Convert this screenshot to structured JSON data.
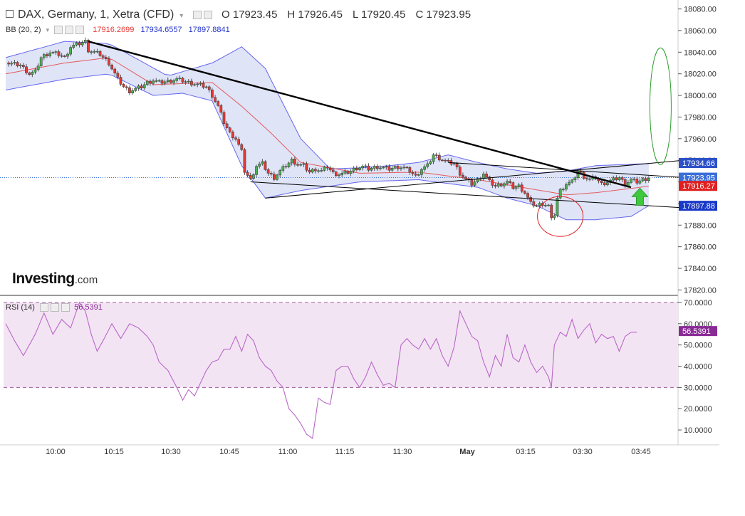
{
  "header": {
    "symbol_title": "DAX, Germany, 1, Xetra (CFD)",
    "open": "O 17923.45",
    "high": "H 17926.45",
    "low": "L 17920.45",
    "close": "C 17923.95",
    "bb_label": "BB (20, 2)",
    "bb_mid": "17916.2699",
    "bb_upper": "17934.6557",
    "bb_lower": "17897.8841",
    "rsi_label": "RSI (14)",
    "rsi_value": "56.5391",
    "logo_main": "Investing",
    "logo_suffix": ".com"
  },
  "colors": {
    "bull": "#4caf50",
    "bear": "#e53935",
    "bb_band": "#6666ee",
    "bb_fill": "#dfe4f7",
    "bb_mid": "#e53935",
    "rsi_line": "#b868c8",
    "rsi_fill": "#f3e4f3",
    "price_badge": "#3b6fd8",
    "upper_badge": "#2b50c8",
    "mid_badge": "#e02020",
    "lower_badge": "#1838c8",
    "rsi_badge": "#8a2a96"
  },
  "chart_data": [
    {
      "type": "candlestick",
      "title": "DAX, Germany, 1, Xetra (CFD)",
      "ylim": [
        17815,
        18085
      ],
      "y_ticks": [
        "18080.00",
        "18060.00",
        "18040.00",
        "18020.00",
        "18000.00",
        "17980.00",
        "17960.00",
        "17940.00",
        "17920.00",
        "17900.00",
        "17880.00",
        "17860.00",
        "17840.00",
        "17820.00"
      ],
      "x_ticks": [
        "10:00",
        "10:15",
        "10:30",
        "10:45",
        "11:00",
        "11:15",
        "11:30",
        "May",
        "03:15",
        "03:30",
        "03:45"
      ],
      "last_price_label": "17923.95",
      "bb_upper_label": "17934.66",
      "bb_mid_label": "17916.27",
      "bb_lower_label": "17897.88",
      "close_path": [
        [
          0,
          18030
        ],
        [
          5,
          18028
        ],
        [
          8,
          18020
        ],
        [
          10,
          18022
        ],
        [
          12,
          18035
        ],
        [
          15,
          18040
        ],
        [
          18,
          18038
        ],
        [
          20,
          18035
        ],
        [
          22,
          18045
        ],
        [
          25,
          18048
        ],
        [
          27,
          18050
        ],
        [
          28,
          18042
        ],
        [
          30,
          18040
        ],
        [
          32,
          18038
        ],
        [
          35,
          18030
        ],
        [
          38,
          18015
        ],
        [
          40,
          18008
        ],
        [
          42,
          18004
        ],
        [
          44,
          18006
        ],
        [
          46,
          18008
        ],
        [
          48,
          18012
        ],
        [
          50,
          18014
        ],
        [
          52,
          18012
        ],
        [
          55,
          18013
        ],
        [
          58,
          18015
        ],
        [
          62,
          18012
        ],
        [
          65,
          18010
        ],
        [
          68,
          18008
        ],
        [
          70,
          18000
        ],
        [
          72,
          17990
        ],
        [
          74,
          17975
        ],
        [
          76,
          17965
        ],
        [
          78,
          17960
        ],
        [
          80,
          17948
        ],
        [
          81,
          17930
        ],
        [
          83,
          17922
        ],
        [
          85,
          17935
        ],
        [
          87,
          17937
        ],
        [
          89,
          17928
        ],
        [
          91,
          17924
        ],
        [
          93,
          17930
        ],
        [
          95,
          17935
        ],
        [
          97,
          17940
        ],
        [
          99,
          17936
        ],
        [
          101,
          17935
        ],
        [
          103,
          17929
        ],
        [
          105,
          17932
        ],
        [
          107,
          17930
        ],
        [
          109,
          17934
        ],
        [
          111,
          17928
        ],
        [
          113,
          17927
        ],
        [
          115,
          17928
        ],
        [
          117,
          17930
        ],
        [
          119,
          17933
        ],
        [
          121,
          17934
        ],
        [
          123,
          17932
        ],
        [
          126,
          17934
        ],
        [
          128,
          17933
        ],
        [
          130,
          17932
        ],
        [
          133,
          17934
        ],
        [
          135,
          17933
        ],
        [
          137,
          17930
        ],
        [
          139,
          17925
        ],
        [
          141,
          17932
        ],
        [
          143,
          17935
        ],
        [
          145,
          17945
        ],
        [
          147,
          17942
        ],
        [
          150,
          17938
        ],
        [
          152,
          17937
        ],
        [
          154,
          17928
        ],
        [
          156,
          17922
        ],
        [
          158,
          17918
        ],
        [
          160,
          17922
        ],
        [
          162,
          17928
        ],
        [
          164,
          17920
        ],
        [
          166,
          17916
        ],
        [
          168,
          17918
        ],
        [
          170,
          17920
        ],
        [
          172,
          17915
        ],
        [
          174,
          17916
        ],
        [
          176,
          17910
        ],
        [
          178,
          17900
        ],
        [
          180,
          17898
        ],
        [
          182,
          17900
        ],
        [
          184,
          17898
        ],
        [
          185,
          17885
        ],
        [
          186,
          17890
        ],
        [
          187,
          17905
        ],
        [
          188,
          17912
        ],
        [
          190,
          17918
        ],
        [
          192,
          17920
        ],
        [
          194,
          17930
        ],
        [
          196,
          17925
        ],
        [
          198,
          17922
        ],
        [
          200,
          17924
        ],
        [
          202,
          17918
        ],
        [
          204,
          17920
        ],
        [
          206,
          17922
        ],
        [
          208,
          17924
        ],
        [
          210,
          17918
        ],
        [
          212,
          17922
        ],
        [
          214,
          17920
        ],
        [
          216,
          17922
        ],
        [
          218,
          17924
        ]
      ],
      "bb_upper": [
        [
          0,
          18035
        ],
        [
          20,
          18050
        ],
        [
          35,
          18048
        ],
        [
          55,
          18018
        ],
        [
          70,
          18030
        ],
        [
          80,
          18045
        ],
        [
          88,
          18025
        ],
        [
          100,
          17960
        ],
        [
          110,
          17932
        ],
        [
          120,
          17933
        ],
        [
          130,
          17935
        ],
        [
          140,
          17938
        ],
        [
          150,
          17945
        ],
        [
          160,
          17938
        ],
        [
          170,
          17932
        ],
        [
          180,
          17928
        ],
        [
          190,
          17930
        ],
        [
          200,
          17935
        ],
        [
          218,
          17937
        ]
      ],
      "bb_lower": [
        [
          0,
          18005
        ],
        [
          20,
          18015
        ],
        [
          35,
          18020
        ],
        [
          50,
          18000
        ],
        [
          60,
          18002
        ],
        [
          70,
          17995
        ],
        [
          80,
          17935
        ],
        [
          88,
          17905
        ],
        [
          100,
          17912
        ],
        [
          120,
          17920
        ],
        [
          140,
          17922
        ],
        [
          160,
          17915
        ],
        [
          170,
          17905
        ],
        [
          180,
          17898
        ],
        [
          190,
          17885
        ],
        [
          200,
          17885
        ],
        [
          212,
          17888
        ],
        [
          218,
          17898
        ]
      ],
      "bb_mid": [
        [
          0,
          18020
        ],
        [
          20,
          18030
        ],
        [
          35,
          18035
        ],
        [
          50,
          18010
        ],
        [
          70,
          18012
        ],
        [
          80,
          17990
        ],
        [
          90,
          17965
        ],
        [
          100,
          17938
        ],
        [
          120,
          17928
        ],
        [
          140,
          17929
        ],
        [
          160,
          17922
        ],
        [
          175,
          17915
        ],
        [
          190,
          17908
        ],
        [
          200,
          17910
        ],
        [
          218,
          17916
        ]
      ],
      "annotations": {
        "trendline_main": [
          [
            28,
            18050
          ],
          [
            212,
            17915
          ]
        ],
        "channel_line_lower": [
          [
            83,
            17920
          ],
          [
            230,
            17896
          ]
        ],
        "channel_line_upper": [
          [
            88,
            17905
          ],
          [
            230,
            17940
          ]
        ],
        "mid_line": [
          [
            150,
            17938
          ],
          [
            230,
            17924
          ]
        ],
        "circle_center": [
          188,
          17888
        ],
        "ellipse_center": [
          222,
          17990
        ],
        "arrow_up": [
          215,
          17905
        ]
      }
    },
    {
      "type": "line",
      "title": "RSI (14)",
      "ylim": [
        3,
        73
      ],
      "y_ticks": [
        "70.0000",
        "60.0000",
        "50.0000",
        "40.0000",
        "30.0000",
        "20.0000",
        "10.0000"
      ],
      "overbought": 70,
      "oversold": 30,
      "last_value_label": "56.5391",
      "values": [
        [
          0,
          60
        ],
        [
          3,
          52
        ],
        [
          6,
          45
        ],
        [
          10,
          55
        ],
        [
          13,
          65
        ],
        [
          16,
          55
        ],
        [
          19,
          62
        ],
        [
          22,
          58
        ],
        [
          25,
          70
        ],
        [
          27,
          66
        ],
        [
          29,
          55
        ],
        [
          31,
          47
        ],
        [
          33,
          52
        ],
        [
          36,
          60
        ],
        [
          39,
          53
        ],
        [
          42,
          60
        ],
        [
          45,
          58
        ],
        [
          48,
          54
        ],
        [
          50,
          50
        ],
        [
          52,
          42
        ],
        [
          55,
          38
        ],
        [
          58,
          30
        ],
        [
          60,
          24
        ],
        [
          62,
          29
        ],
        [
          64,
          26
        ],
        [
          66,
          32
        ],
        [
          68,
          38
        ],
        [
          70,
          42
        ],
        [
          72,
          43
        ],
        [
          74,
          48
        ],
        [
          76,
          48
        ],
        [
          78,
          54
        ],
        [
          80,
          47
        ],
        [
          82,
          55
        ],
        [
          84,
          52
        ],
        [
          86,
          44
        ],
        [
          88,
          40
        ],
        [
          90,
          38
        ],
        [
          92,
          33
        ],
        [
          94,
          30
        ],
        [
          96,
          20
        ],
        [
          98,
          17
        ],
        [
          100,
          13
        ],
        [
          102,
          8
        ],
        [
          104,
          6
        ],
        [
          106,
          25
        ],
        [
          108,
          23
        ],
        [
          110,
          22
        ],
        [
          112,
          38
        ],
        [
          114,
          40
        ],
        [
          116,
          40
        ],
        [
          118,
          34
        ],
        [
          120,
          30
        ],
        [
          122,
          35
        ],
        [
          124,
          42
        ],
        [
          126,
          36
        ],
        [
          128,
          31
        ],
        [
          130,
          32
        ],
        [
          132,
          30
        ],
        [
          134,
          50
        ],
        [
          136,
          53
        ],
        [
          138,
          50
        ],
        [
          140,
          48
        ],
        [
          142,
          53
        ],
        [
          144,
          48
        ],
        [
          146,
          53
        ],
        [
          148,
          45
        ],
        [
          150,
          40
        ],
        [
          152,
          49
        ],
        [
          154,
          66
        ],
        [
          156,
          60
        ],
        [
          158,
          54
        ],
        [
          160,
          52
        ],
        [
          162,
          42
        ],
        [
          164,
          35
        ],
        [
          166,
          45
        ],
        [
          168,
          40
        ],
        [
          170,
          55
        ],
        [
          172,
          44
        ],
        [
          174,
          42
        ],
        [
          176,
          50
        ],
        [
          178,
          42
        ],
        [
          180,
          37
        ],
        [
          182,
          40
        ],
        [
          184,
          35
        ],
        [
          185,
          30
        ],
        [
          186,
          50
        ],
        [
          188,
          56
        ],
        [
          190,
          54
        ],
        [
          192,
          62
        ],
        [
          194,
          53
        ],
        [
          196,
          57
        ],
        [
          198,
          60
        ],
        [
          200,
          51
        ],
        [
          202,
          55
        ],
        [
          204,
          53
        ],
        [
          206,
          54
        ],
        [
          208,
          47
        ],
        [
          210,
          54
        ],
        [
          212,
          56
        ],
        [
          214,
          56
        ]
      ]
    }
  ]
}
